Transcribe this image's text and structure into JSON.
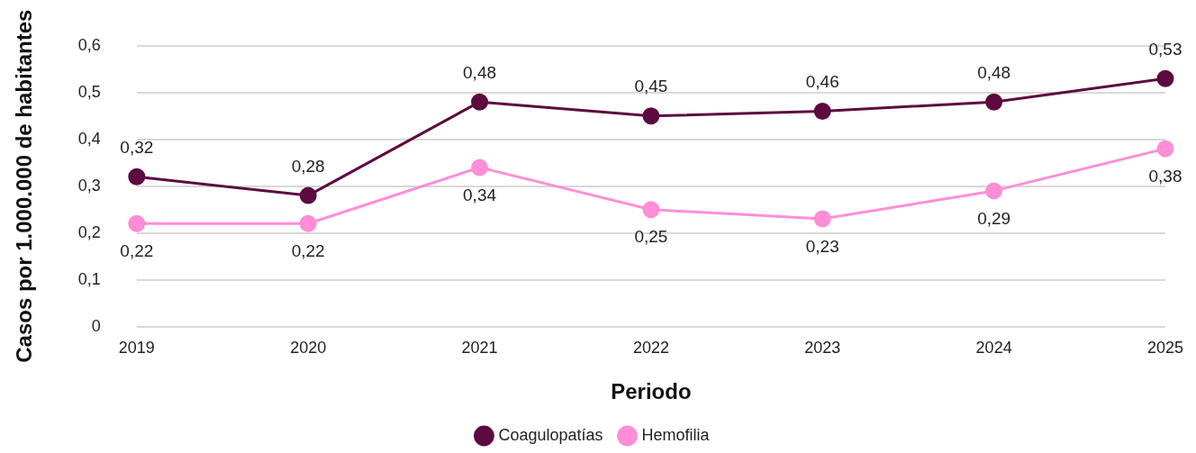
{
  "chart_data": {
    "type": "line",
    "xlabel": "Periodo",
    "ylabel": "Casos por 1.000.000 de habitantes",
    "categories": [
      "2019",
      "2020",
      "2021",
      "2022",
      "2023",
      "2024",
      "2025"
    ],
    "series": [
      {
        "name": "Coagulopatías",
        "color": "#5c0a3f",
        "values": [
          0.32,
          0.28,
          0.48,
          0.45,
          0.46,
          0.48,
          0.53
        ],
        "value_labels": [
          "0,32",
          "0,28",
          "0,48",
          "0,45",
          "0,46",
          "0,48",
          "0,53"
        ]
      },
      {
        "name": "Hemofilia",
        "color": "#ff8ed6",
        "values": [
          0.22,
          0.22,
          0.34,
          0.25,
          0.23,
          0.29,
          0.38
        ],
        "value_labels": [
          "0,22",
          "0,22",
          "0,34",
          "0,25",
          "0,23",
          "0,29",
          "0,38"
        ]
      }
    ],
    "ylim": [
      0,
      0.6
    ],
    "yticks": [
      {
        "value": 0,
        "label": "0"
      },
      {
        "value": 0.1,
        "label": "0,1"
      },
      {
        "value": 0.2,
        "label": "0,2"
      },
      {
        "value": 0.3,
        "label": "0,3"
      },
      {
        "value": 0.4,
        "label": "0,4"
      },
      {
        "value": 0.5,
        "label": "0,5"
      },
      {
        "value": 0.6,
        "label": "0,6"
      }
    ],
    "grid": "y",
    "legend": "bottom",
    "marker": "circle",
    "line_style": "solid"
  }
}
